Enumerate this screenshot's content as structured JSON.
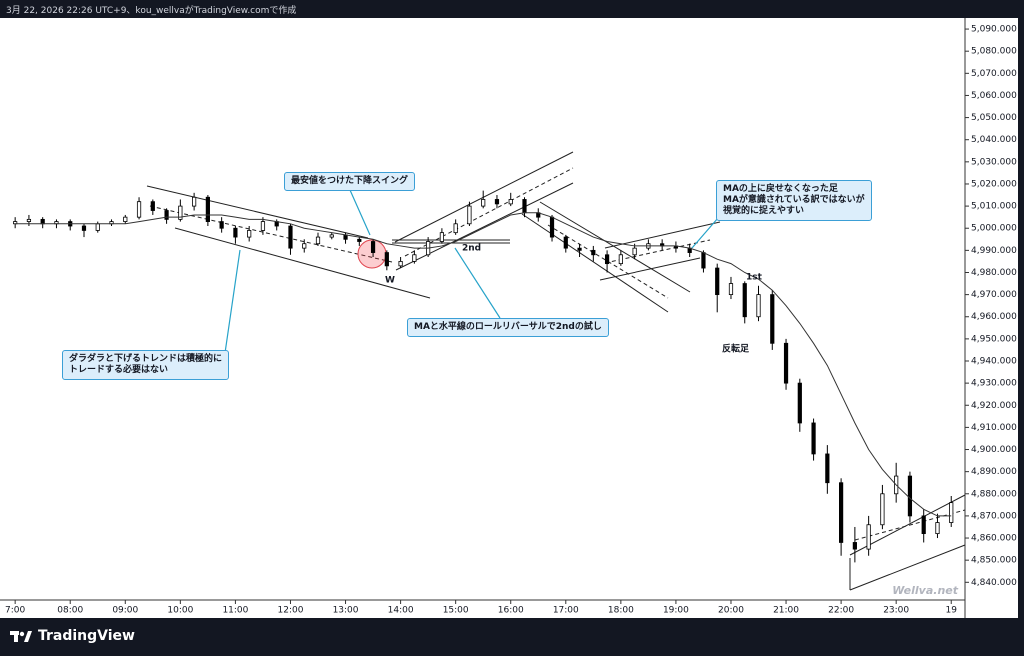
{
  "header": {
    "text": "3月 22, 2026 22:26 UTC+9、kou_wellvaがTradingView.comで作成"
  },
  "chart_data": {
    "type": "candlestick",
    "x": [
      7,
      7.25,
      7.5,
      7.75,
      8,
      8.25,
      8.5,
      8.75,
      9,
      9.25,
      9.5,
      9.75,
      10,
      10.25,
      10.5,
      10.75,
      11,
      11.25,
      11.5,
      11.75,
      12,
      12.25,
      12.5,
      12.75,
      13,
      13.25,
      13.5,
      13.75,
      14,
      14.25,
      14.5,
      14.75,
      15,
      15.25,
      15.5,
      15.75,
      16,
      16.25,
      16.5,
      16.75,
      17,
      17.25,
      17.5,
      17.75,
      18,
      18.25,
      18.5,
      18.75,
      19,
      19.25,
      19.5,
      19.75,
      20,
      20.25,
      20.5,
      20.75,
      21,
      21.25,
      21.5,
      21.75,
      22,
      22.25,
      22.5,
      22.75,
      23,
      23.25,
      23.5,
      23.75,
      24
    ],
    "open": [
      5002,
      5003,
      5004,
      5002,
      5003,
      5001,
      4999,
      5002,
      5003,
      5005,
      5012,
      5008,
      5004,
      5010,
      5014,
      5003,
      5000,
      4996,
      4999,
      5003,
      5001,
      4991,
      4993,
      4996,
      4997,
      4995,
      4994,
      4989,
      4983,
      4985,
      4988,
      4994,
      4998,
      5002,
      5010,
      5013,
      5011,
      5013,
      5007,
      5005,
      4996,
      4991,
      4990,
      4988,
      4984,
      4988,
      4991,
      4993,
      4992,
      4991,
      4989,
      4982,
      4970,
      4975,
      4960,
      4970,
      4948,
      4930,
      4912,
      4898,
      4885,
      4858,
      4855,
      4866,
      4880,
      4888,
      4870,
      4862,
      4867
    ],
    "high": [
      5005,
      5006,
      5005,
      5004,
      5004,
      5002,
      5003,
      5004,
      5006,
      5014,
      5013,
      5009,
      5013,
      5016,
      5015,
      5005,
      5001,
      5001,
      5005,
      5004,
      5002,
      4995,
      4998,
      4998,
      4998,
      4996,
      4995,
      4990,
      4987,
      4990,
      4996,
      5000,
      5004,
      5012,
      5017,
      5015,
      5016,
      5014,
      5009,
      5006,
      4997,
      4993,
      4992,
      4990,
      4990,
      4993,
      4995,
      4995,
      4994,
      4993,
      4990,
      4984,
      4978,
      4976,
      4974,
      4972,
      4950,
      4932,
      4914,
      4902,
      4887,
      4865,
      4870,
      4884,
      4894,
      4890,
      4873,
      4871,
      4879
    ],
    "low": [
      5000,
      5001,
      5000,
      5000,
      4999,
      4996,
      4998,
      5001,
      5002,
      5004,
      5006,
      5002,
      5003,
      5008,
      5001,
      4998,
      4993,
      4994,
      4997,
      4999,
      4988,
      4989,
      4992,
      4995,
      4993,
      4992,
      4987,
      4981,
      4982,
      4984,
      4987,
      4993,
      4997,
      5001,
      5009,
      5009,
      5010,
      5005,
      5003,
      4994,
      4989,
      4987,
      4985,
      4980,
      4983,
      4986,
      4990,
      4990,
      4989,
      4987,
      4980,
      4962,
      4968,
      4957,
      4958,
      4945,
      4927,
      4908,
      4895,
      4880,
      4852,
      4849,
      4852,
      4864,
      4876,
      4867,
      4858,
      4860,
      4865
    ],
    "close": [
      5003,
      5004,
      5002,
      5003,
      5001,
      4999,
      5002,
      5003,
      5005,
      5012,
      5008,
      5004,
      5010,
      5014,
      5003,
      5000,
      4996,
      4999,
      5003,
      5001,
      4991,
      4993,
      4996,
      4997,
      4995,
      4994,
      4989,
      4983,
      4985,
      4988,
      4994,
      4998,
      5002,
      5010,
      5013,
      5011,
      5013,
      5007,
      5005,
      4996,
      4991,
      4990,
      4988,
      4984,
      4988,
      4991,
      4993,
      4992,
      4991,
      4989,
      4982,
      4970,
      4975,
      4960,
      4970,
      4948,
      4930,
      4912,
      4898,
      4885,
      4858,
      4855,
      4866,
      4880,
      4888,
      4870,
      4862,
      4867,
      4876
    ],
    "ma": [
      5002,
      5002,
      5002,
      5002,
      5002,
      5002,
      5002,
      5002,
      5002,
      5003,
      5004,
      5005,
      5005,
      5006,
      5006,
      5006,
      5005,
      5004,
      5004,
      5003,
      5002,
      5000,
      4999,
      4998,
      4997,
      4996,
      4995,
      4993,
      4992,
      4991,
      4991,
      4992,
      4994,
      4997,
      5000,
      5003,
      5006,
      5007,
      5007,
      5005,
      5002,
      4999,
      4996,
      4994,
      4993,
      4992,
      4992,
      4992,
      4992,
      4991,
      4989,
      4986,
      4984,
      4980,
      4977,
      4972,
      4965,
      4957,
      4948,
      4938,
      4925,
      4912,
      4900,
      4891,
      4884,
      4878,
      4873,
      4870,
      4870
    ],
    "up_color": "#ffffff",
    "down_color": "#000000",
    "ma_color": "#333333",
    "xlim": [
      6.87,
      24.25
    ],
    "ylim": [
      4832,
      5095
    ],
    "xticks": [
      {
        "value": 7,
        "label": "7:00"
      },
      {
        "value": 8,
        "label": "08:00"
      },
      {
        "value": 9,
        "label": "09:00"
      },
      {
        "value": 10,
        "label": "10:00"
      },
      {
        "value": 11,
        "label": "11:00"
      },
      {
        "value": 12,
        "label": "12:00"
      },
      {
        "value": 13,
        "label": "13:00"
      },
      {
        "value": 14,
        "label": "14:00"
      },
      {
        "value": 15,
        "label": "15:00"
      },
      {
        "value": 16,
        "label": "16:00"
      },
      {
        "value": 17,
        "label": "17:00"
      },
      {
        "value": 18,
        "label": "18:00"
      },
      {
        "value": 19,
        "label": "19:00"
      },
      {
        "value": 20,
        "label": "20:00"
      },
      {
        "value": 21,
        "label": "21:00"
      },
      {
        "value": 22,
        "label": "22:00"
      },
      {
        "value": 23,
        "label": "23:00"
      },
      {
        "value": 24,
        "label": "19"
      }
    ],
    "yticks": [
      {
        "value": 4840,
        "label": "4,840.000"
      },
      {
        "value": 4850,
        "label": "4,850.000"
      },
      {
        "value": 4860,
        "label": "4,860.000"
      },
      {
        "value": 4870,
        "label": "4,870.000"
      },
      {
        "value": 4880,
        "label": "4,880.000"
      },
      {
        "value": 4890,
        "label": "4,890.000"
      },
      {
        "value": 4900,
        "label": "4,900.000"
      },
      {
        "value": 4910,
        "label": "4,910.000"
      },
      {
        "value": 4920,
        "label": "4,920.000"
      },
      {
        "value": 4930,
        "label": "4,930.000"
      },
      {
        "value": 4940,
        "label": "4,940.000"
      },
      {
        "value": 4950,
        "label": "4,950.000"
      },
      {
        "value": 4960,
        "label": "4,960.000"
      },
      {
        "value": 4970,
        "label": "4,970.000"
      },
      {
        "value": 4980,
        "label": "4,980.000"
      },
      {
        "value": 4990,
        "label": "4,990.000"
      },
      {
        "value": 5000,
        "label": "5,000.000"
      },
      {
        "value": 5010,
        "label": "5,010.000"
      },
      {
        "value": 5020,
        "label": "5,020.000"
      },
      {
        "value": 5030,
        "label": "5,030.000"
      },
      {
        "value": 5040,
        "label": "5,040.000"
      },
      {
        "value": 5050,
        "label": "5,050.000"
      },
      {
        "value": 5060,
        "label": "5,060.000"
      },
      {
        "value": 5070,
        "label": "5,070.000"
      },
      {
        "value": 5080,
        "label": "5,080.000"
      },
      {
        "value": 5090,
        "label": "5,090.000"
      }
    ],
    "grid": false,
    "labels": [
      "W",
      "2nd",
      "1st",
      "反転足"
    ],
    "watermark": "Wellva.net"
  },
  "annotations": [
    {
      "lines": [
        "最安値をつけた下降スイング"
      ]
    },
    {
      "lines": [
        "MAと水平線のロールリバーサルで2ndの試し"
      ]
    },
    {
      "lines": [
        "ダラダラと下げるトレンドは積極的に",
        "トレードする必要はない"
      ]
    },
    {
      "lines": [
        "MAの上に戻せなくなった足",
        "MAが意識されている訳ではないが",
        "視覚的に捉えやすい"
      ]
    }
  ],
  "footer": {
    "brand": "TradingView"
  }
}
